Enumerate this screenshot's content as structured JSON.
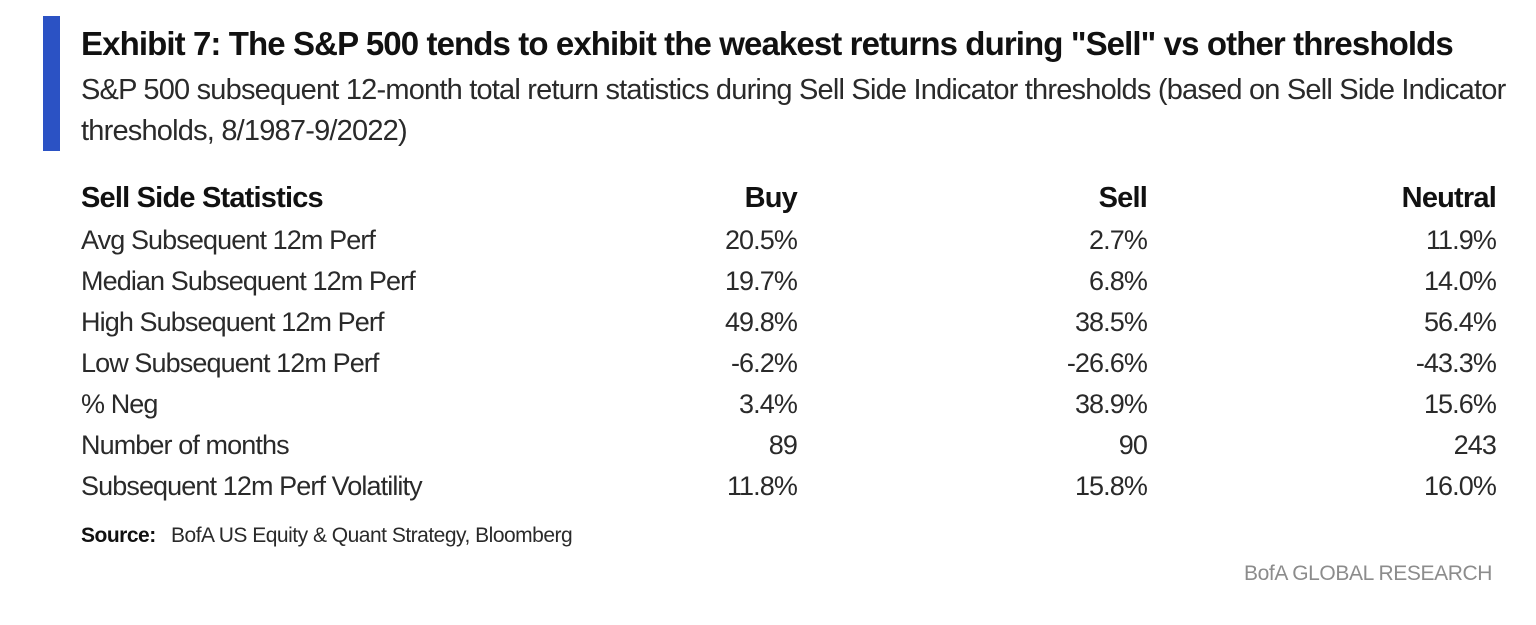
{
  "exhibit": {
    "title": "Exhibit 7: The S&P 500 tends to exhibit the weakest returns during \"Sell\" vs other thresholds",
    "subtitle": "S&P 500 subsequent 12-month total return statistics during Sell Side Indicator thresholds (based on Sell Side Indicator thresholds, 8/1987-9/2022)",
    "accent_color": "#2b52c4"
  },
  "table": {
    "headers": [
      "Sell Side Statistics",
      "Buy",
      "Sell",
      "Neutral"
    ],
    "rows": [
      {
        "label": "Avg Subsequent 12m Perf",
        "buy": "20.5%",
        "sell": "2.7%",
        "neutral": "11.9%"
      },
      {
        "label": "Median Subsequent 12m Perf",
        "buy": "19.7%",
        "sell": "6.8%",
        "neutral": "14.0%"
      },
      {
        "label": "High Subsequent 12m Perf",
        "buy": "49.8%",
        "sell": "38.5%",
        "neutral": "56.4%"
      },
      {
        "label": "Low Subsequent 12m Perf",
        "buy": "-6.2%",
        "sell": "-26.6%",
        "neutral": "-43.3%"
      },
      {
        "label": "% Neg",
        "buy": "3.4%",
        "sell": "38.9%",
        "neutral": "15.6%"
      },
      {
        "label": "Number of months",
        "buy": "89",
        "sell": "90",
        "neutral": "243"
      },
      {
        "label": "Subsequent 12m Perf Volatility",
        "buy": "11.8%",
        "sell": "15.8%",
        "neutral": "16.0%"
      }
    ]
  },
  "footer": {
    "source_label": "Source:",
    "source_text": "BofA US Equity & Quant Strategy, Bloomberg",
    "brand": "BofA GLOBAL RESEARCH"
  }
}
